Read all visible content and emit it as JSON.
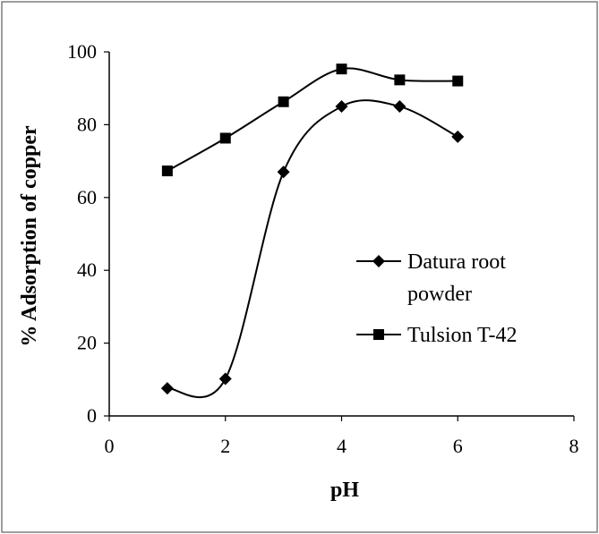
{
  "chart_data": {
    "type": "line",
    "title": "",
    "xlabel": "pH",
    "ylabel": "% Adsorption of copper",
    "xlim": [
      0,
      8
    ],
    "ylim": [
      0,
      100
    ],
    "xticks": [
      0,
      2,
      4,
      6,
      8
    ],
    "yticks": [
      0,
      20,
      40,
      60,
      80,
      100
    ],
    "grid": false,
    "legend_position": "right",
    "series": [
      {
        "name": "Datura root powder",
        "legend_lines": [
          "Datura root",
          "powder"
        ],
        "marker": "diamond",
        "x": [
          1,
          2,
          3,
          4,
          5,
          6
        ],
        "values": [
          7.6,
          10.2,
          67,
          85,
          85,
          76.7
        ]
      },
      {
        "name": "Tulsion T-42",
        "legend_lines": [
          "Tulsion T-42"
        ],
        "marker": "square",
        "x": [
          1,
          2,
          3,
          4,
          5,
          6
        ],
        "values": [
          67.3,
          76.3,
          86.3,
          95.3,
          92.3,
          92
        ]
      }
    ]
  },
  "colors": {
    "line": "#000000",
    "frame": "#7f7f7f",
    "background": "#ffffff"
  }
}
